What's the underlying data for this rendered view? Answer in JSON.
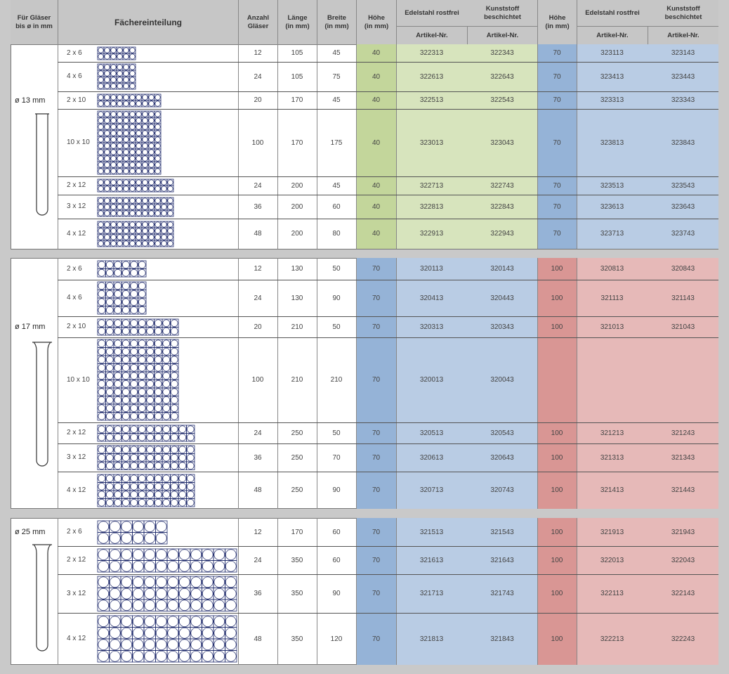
{
  "header": {
    "col_glass": "Für Gläser\nbis ø in mm",
    "col_layout": "Fächereinteilung",
    "col_count": "Anzahl\nGläser",
    "col_length": "Länge\n(in mm)",
    "col_width": "Breite\n(in mm)",
    "col_height_a": "Höhe\n(in mm)",
    "col_steel_a": "Edelstahl rostfrei",
    "col_plastic_a": "Kunststoff\nbeschichtet",
    "col_height_b": "Höhe\n(in mm)",
    "col_steel_b": "Edelstahl rostfrei",
    "col_plastic_b": "Kunststoff\nbeschichtet",
    "art_nr": "Artikel-Nr."
  },
  "colors": {
    "green_light": "#d7e4bd",
    "green_dark": "#c3d69b",
    "blue_light": "#b9cce4",
    "blue_dark": "#95b3d7",
    "red_light": "#e6b9b8",
    "red_dark": "#d99694",
    "header_bg": "#c6c6c6",
    "grid_stroke": "#1f2a6b"
  },
  "sections": [
    {
      "diameter_label": "ø 13 mm",
      "rows": [
        {
          "layout": "2 x 6",
          "rows_n": 2,
          "cols_n": 6,
          "count": "12",
          "length": "105",
          "width": "45",
          "h1": "40",
          "a1": "322313",
          "b1": "322343",
          "h2": "70",
          "a2": "323113",
          "b2": "323143"
        },
        {
          "layout": "4 x 6",
          "rows_n": 4,
          "cols_n": 6,
          "count": "24",
          "length": "105",
          "width": "75",
          "h1": "40",
          "a1": "322613",
          "b1": "322643",
          "h2": "70",
          "a2": "323413",
          "b2": "323443"
        },
        {
          "layout": "2 x 10",
          "rows_n": 2,
          "cols_n": 10,
          "count": "20",
          "length": "170",
          "width": "45",
          "h1": "40",
          "a1": "322513",
          "b1": "322543",
          "h2": "70",
          "a2": "323313",
          "b2": "323343"
        },
        {
          "layout": "10 x 10",
          "rows_n": 10,
          "cols_n": 10,
          "count": "100",
          "length": "170",
          "width": "175",
          "h1": "40",
          "a1": "323013",
          "b1": "323043",
          "h2": "70",
          "a2": "323813",
          "b2": "323843"
        },
        {
          "layout": "2 x 12",
          "rows_n": 2,
          "cols_n": 12,
          "count": "24",
          "length": "200",
          "width": "45",
          "h1": "40",
          "a1": "322713",
          "b1": "322743",
          "h2": "70",
          "a2": "323513",
          "b2": "323543"
        },
        {
          "layout": "3 x 12",
          "rows_n": 3,
          "cols_n": 12,
          "count": "36",
          "length": "200",
          "width": "60",
          "h1": "40",
          "a1": "322813",
          "b1": "322843",
          "h2": "70",
          "a2": "323613",
          "b2": "323643"
        },
        {
          "layout": "4 x 12",
          "rows_n": 4,
          "cols_n": 12,
          "count": "48",
          "length": "200",
          "width": "80",
          "h1": "40",
          "a1": "322913",
          "b1": "322943",
          "h2": "70",
          "a2": "323713",
          "b2": "323743"
        }
      ]
    },
    {
      "diameter_label": "ø 17 mm",
      "rows": [
        {
          "layout": "2 x 6",
          "rows_n": 2,
          "cols_n": 6,
          "count": "12",
          "length": "130",
          "width": "50",
          "h1": "70",
          "a1": "320113",
          "b1": "320143",
          "h2": "100",
          "a2": "320813",
          "b2": "320843"
        },
        {
          "layout": "4 x 6",
          "rows_n": 4,
          "cols_n": 6,
          "count": "24",
          "length": "130",
          "width": "90",
          "h1": "70",
          "a1": "320413",
          "b1": "320443",
          "h2": "100",
          "a2": "321113",
          "b2": "321143"
        },
        {
          "layout": "2 x 10",
          "rows_n": 2,
          "cols_n": 10,
          "count": "20",
          "length": "210",
          "width": "50",
          "h1": "70",
          "a1": "320313",
          "b1": "320343",
          "h2": "100",
          "a2": "321013",
          "b2": "321043"
        },
        {
          "layout": "10 x 10",
          "rows_n": 10,
          "cols_n": 10,
          "count": "100",
          "length": "210",
          "width": "210",
          "h1": "70",
          "a1": "320013",
          "b1": "320043",
          "h2": "",
          "a2": "",
          "b2": ""
        },
        {
          "layout": "2 x 12",
          "rows_n": 2,
          "cols_n": 12,
          "count": "24",
          "length": "250",
          "width": "50",
          "h1": "70",
          "a1": "320513",
          "b1": "320543",
          "h2": "100",
          "a2": "321213",
          "b2": "321243"
        },
        {
          "layout": "3 x 12",
          "rows_n": 3,
          "cols_n": 12,
          "count": "36",
          "length": "250",
          "width": "70",
          "h1": "70",
          "a1": "320613",
          "b1": "320643",
          "h2": "100",
          "a2": "321313",
          "b2": "321343"
        },
        {
          "layout": "4 x 12",
          "rows_n": 4,
          "cols_n": 12,
          "count": "48",
          "length": "250",
          "width": "90",
          "h1": "70",
          "a1": "320713",
          "b1": "320743",
          "h2": "100",
          "a2": "321413",
          "b2": "321443"
        }
      ]
    },
    {
      "diameter_label": "ø 25 mm",
      "rows": [
        {
          "layout": "2 x 6",
          "rows_n": 2,
          "cols_n": 6,
          "count": "12",
          "length": "170",
          "width": "60",
          "h1": "70",
          "a1": "321513",
          "b1": "321543",
          "h2": "100",
          "a2": "321913",
          "b2": "321943"
        },
        {
          "layout": "2 x 12",
          "rows_n": 2,
          "cols_n": 12,
          "count": "24",
          "length": "350",
          "width": "60",
          "h1": "70",
          "a1": "321613",
          "b1": "321643",
          "h2": "100",
          "a2": "322013",
          "b2": "322043"
        },
        {
          "layout": "3 x 12",
          "rows_n": 3,
          "cols_n": 12,
          "count": "36",
          "length": "350",
          "width": "90",
          "h1": "70",
          "a1": "321713",
          "b1": "321743",
          "h2": "100",
          "a2": "322113",
          "b2": "322143"
        },
        {
          "layout": "4 x 12",
          "rows_n": 4,
          "cols_n": 12,
          "count": "48",
          "length": "350",
          "width": "120",
          "h1": "70",
          "a1": "321813",
          "b1": "321843",
          "h2": "100",
          "a2": "322213",
          "b2": "322243"
        }
      ]
    }
  ]
}
